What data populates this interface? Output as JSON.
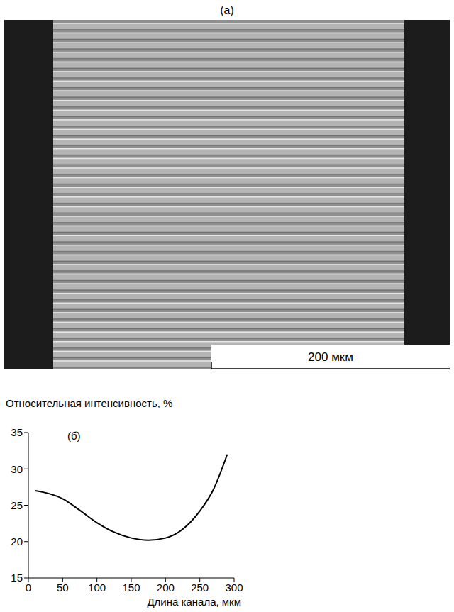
{
  "panel_a": {
    "label": "(a)",
    "scale_bar": "200 мкм"
  },
  "chart_data": {
    "type": "line",
    "title": "(б)",
    "y_label": "Относительная интенсивность, %",
    "x_label": "Длина канала, мкм",
    "x": [
      10,
      30,
      50,
      75,
      100,
      125,
      150,
      175,
      200,
      225,
      250,
      270,
      290
    ],
    "values": [
      27,
      26.6,
      25.9,
      24.3,
      22.6,
      21.3,
      20.5,
      20.2,
      20.5,
      21.7,
      24.2,
      27.2,
      32
    ],
    "color": "#000000",
    "line_style": "solid",
    "marker": "none",
    "xlim": [
      0,
      300
    ],
    "xticks": [
      0,
      50,
      100,
      150,
      200,
      250,
      300
    ],
    "ylim": [
      15,
      35
    ],
    "yticks": [
      15,
      20,
      25,
      30,
      35
    ],
    "grid": false
  }
}
